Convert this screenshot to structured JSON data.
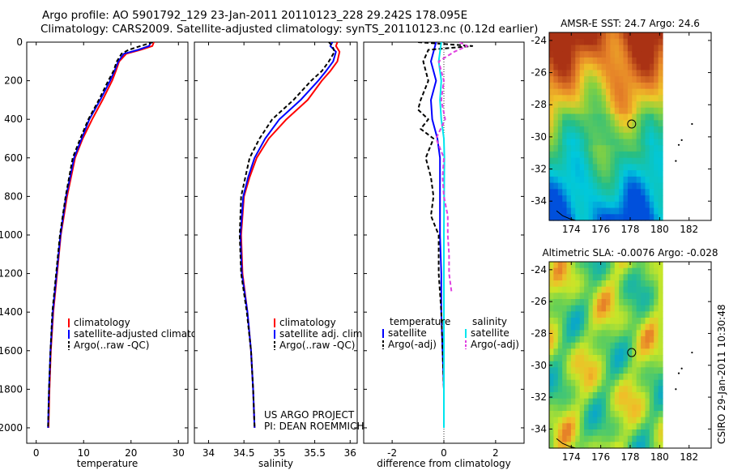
{
  "header": {
    "line1": "Argo profile: AO 5901792_129 23-Jan-2011 20110123_228 29.242S 178.095E",
    "line2": "Climatology: CARS2009. Satellite-adjusted climatology: synTS_20110123.nc (0.12d earlier)"
  },
  "side_label": "CSIRO 29-Jan-2011 10:30:48",
  "project": {
    "line1": "US ARGO PROJECT",
    "line2": "PI: DEAN ROEMMICH"
  },
  "colors": {
    "clim": "#ff0000",
    "sat": "#0000ff",
    "argo": "#000000",
    "sat_diff_sal": "#00e5ee",
    "argo_diff_sal": "#e040e0"
  },
  "chart_data": [
    {
      "type": "line",
      "id": "temperature",
      "xlabel": "temperature",
      "ylabel": "",
      "xlim": [
        -2,
        32
      ],
      "ylim": [
        2080,
        0
      ],
      "xticks": [
        0,
        10,
        20,
        30
      ],
      "yticks": [
        0,
        200,
        400,
        600,
        800,
        1000,
        1200,
        1400,
        1600,
        1800,
        2000
      ],
      "depth": [
        0,
        20,
        40,
        60,
        100,
        150,
        200,
        300,
        400,
        500,
        600,
        800,
        1000,
        1200,
        1400,
        1600,
        1800,
        2000
      ],
      "series": [
        {
          "name": "climatology",
          "color": "#ff0000",
          "dash": "",
          "values": [
            24.8,
            24.5,
            22,
            19,
            17.5,
            16.8,
            16,
            14,
            11.8,
            9.8,
            8.2,
            6.5,
            5.2,
            4.4,
            3.6,
            3.1,
            2.8,
            2.6
          ]
        },
        {
          "name": "satellite-adjusted climatology",
          "color": "#0000ff",
          "dash": "",
          "values": [
            24.2,
            23.8,
            21.5,
            18.5,
            17.3,
            16.5,
            15.6,
            13.5,
            11.2,
            9.6,
            8,
            6.3,
            5.1,
            4.3,
            3.5,
            3,
            2.7,
            2.5
          ]
        },
        {
          "name": "Argo(..raw -QC)",
          "color": "#000000",
          "dash": "5,3",
          "values": [
            24.6,
            22,
            19.5,
            18,
            17,
            16.3,
            15.2,
            13.2,
            11,
            9.3,
            7.7,
            6.2,
            5,
            4.2,
            3.4,
            3,
            2.7,
            2.5
          ]
        }
      ],
      "legend": [
        "climatology",
        "satellite-adjusted climatology",
        "Argo(..raw -QC)"
      ]
    },
    {
      "type": "line",
      "id": "salinity",
      "xlabel": "salinity",
      "ylabel": "",
      "xlim": [
        33.8,
        36.1
      ],
      "ylim": [
        2080,
        0
      ],
      "xticks": [
        34,
        34.5,
        35,
        35.5,
        36
      ],
      "depth": [
        0,
        20,
        50,
        100,
        150,
        200,
        300,
        400,
        500,
        600,
        700,
        800,
        1000,
        1200,
        1400,
        1600,
        1800,
        2000
      ],
      "series": [
        {
          "name": "climatology",
          "color": "#ff0000",
          "dash": "",
          "values": [
            35.82,
            35.8,
            35.85,
            35.82,
            35.72,
            35.6,
            35.4,
            35.1,
            34.85,
            34.68,
            34.58,
            34.5,
            34.46,
            34.48,
            34.55,
            34.6,
            34.63,
            34.65
          ]
        },
        {
          "name": "satellite adj. clim.",
          "color": "#0000ff",
          "dash": "",
          "values": [
            35.75,
            35.72,
            35.8,
            35.76,
            35.66,
            35.55,
            35.3,
            35.0,
            34.8,
            34.65,
            34.56,
            34.49,
            34.45,
            34.47,
            34.55,
            34.6,
            34.63,
            34.65
          ]
        },
        {
          "name": "Argo(..raw -QC)",
          "color": "#000000",
          "dash": "5,3",
          "values": [
            35.7,
            35.75,
            35.78,
            35.7,
            35.6,
            35.45,
            35.2,
            34.9,
            34.72,
            34.58,
            34.52,
            34.46,
            34.44,
            34.46,
            34.54,
            34.6,
            34.63,
            34.65
          ]
        }
      ],
      "legend": [
        "climatology",
        "satellite adj. clim.",
        "Argo(..raw -QC)"
      ]
    },
    {
      "type": "line",
      "id": "difference",
      "xlabel": "difference from climatology",
      "ylabel": "",
      "xlim": [
        -3.1,
        3.1
      ],
      "ylim": [
        2080,
        0
      ],
      "xticks": [
        -2,
        0,
        2
      ],
      "legend_groups": [
        {
          "title": "temperature",
          "items": [
            "satellite",
            "Argo(-adj)"
          ]
        },
        {
          "title": "salinity",
          "items": [
            "satellite",
            "Argo(-adj)"
          ]
        }
      ],
      "series": [
        {
          "name": "temperature satellite",
          "color": "#0000ff",
          "dash": "",
          "depth": [
            0,
            50,
            100,
            200,
            300,
            400,
            500,
            600,
            800,
            1000,
            1200,
            1400,
            1600,
            1800,
            2000
          ],
          "values": [
            -0.3,
            -0.4,
            -0.5,
            -0.3,
            -0.5,
            -0.45,
            -0.25,
            -0.15,
            -0.15,
            -0.15,
            -0.1,
            -0.1,
            -0.05,
            0,
            0
          ]
        },
        {
          "name": "temperature Argo(-adj)",
          "color": "#000000",
          "dash": "5,3",
          "depth": [
            0,
            20,
            40,
            100,
            200,
            300,
            350,
            400,
            450,
            500,
            600,
            700,
            800,
            900,
            1000,
            1200,
            1400,
            1600,
            1800,
            2000
          ],
          "values": [
            -1.0,
            1.1,
            -0.6,
            -0.8,
            -0.6,
            -0.9,
            -1.0,
            -0.6,
            -0.9,
            -0.4,
            -0.7,
            -0.5,
            -0.4,
            -0.5,
            -0.2,
            -0.2,
            -0.1,
            -0.05,
            0,
            0
          ]
        },
        {
          "name": "salinity satellite",
          "color": "#00e5ee",
          "dash": "",
          "depth": [
            0,
            100,
            200,
            300,
            400,
            500,
            600,
            800,
            1000,
            1200,
            1400,
            1600,
            1800,
            2000
          ],
          "values": [
            -0.1,
            -0.2,
            -0.1,
            -0.15,
            -0.1,
            0,
            0.02,
            0.01,
            0,
            0,
            0,
            0,
            0,
            0
          ]
        },
        {
          "name": "salinity Argo(-adj)",
          "color": "#e040e0",
          "dash": "5,3",
          "depth": [
            0,
            20,
            50,
            100,
            200,
            300,
            400,
            500,
            600,
            700,
            800,
            900,
            1000,
            1100,
            1200,
            1300
          ],
          "values": [
            0.6,
            0.9,
            0.4,
            -0.2,
            0,
            -0.1,
            0.05,
            -0.3,
            0.0,
            -0.05,
            0.0,
            0.15,
            0.15,
            0.2,
            0.2,
            0.3
          ]
        }
      ]
    },
    {
      "type": "heatmap",
      "id": "sst_map",
      "title": "AMSR-E SST: 24.7 Argo: 24.6",
      "xlim": [
        172.5,
        183.5
      ],
      "ylim": [
        -35.2,
        -23.5
      ],
      "xticks": [
        174,
        176,
        178,
        180,
        182
      ],
      "yticks": [
        -24,
        -26,
        -28,
        -30,
        -32,
        -34
      ],
      "data_extent_lon": [
        172.5,
        180.2
      ],
      "float_position": {
        "lon": 178.1,
        "lat": -29.2
      }
    },
    {
      "type": "heatmap",
      "id": "sla_map",
      "title": "Altimetric SLA: -0.0076 Argo: -0.028",
      "xlim": [
        172.5,
        183.5
      ],
      "ylim": [
        -35.2,
        -23.5
      ],
      "xticks": [
        174,
        176,
        178,
        180,
        182
      ],
      "yticks": [
        -24,
        -26,
        -28,
        -30,
        -32,
        -34
      ],
      "data_extent_lon": [
        172.5,
        180.2
      ],
      "float_position": {
        "lon": 178.1,
        "lat": -29.2
      }
    }
  ]
}
